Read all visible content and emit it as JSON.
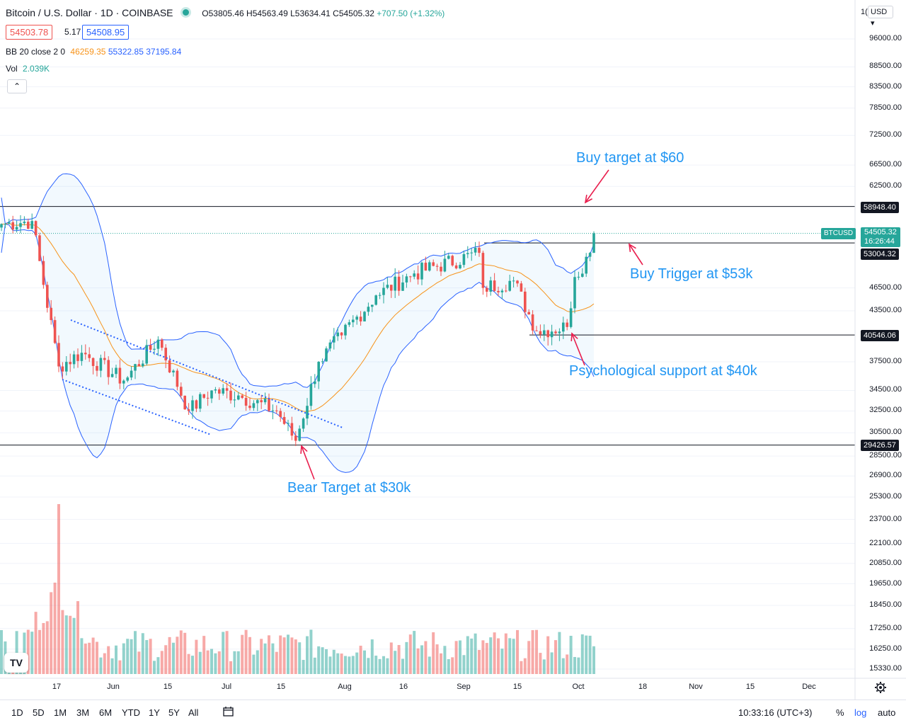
{
  "header": {
    "title": "Bitcoin / U.S. Dollar · 1D · COINBASE",
    "ohlc_open": "O53805.46",
    "ohlc_high": "H54563.49",
    "ohlc_low": "L53634.41",
    "ohlc_close": "C54505.32",
    "ohlc_change": "+707.50 (+1.32%)",
    "sell_price": "54503.78",
    "spread": "5.17",
    "buy_price": "54508.95"
  },
  "indicators": {
    "bb_name": "BB 20 close 2 0",
    "bb_basis": "46259.35",
    "bb_upper": "55322.85",
    "bb_lower": "37195.84",
    "vol_name": "Vol",
    "vol_value": "2.039K",
    "collapse_glyph": "⌃"
  },
  "price_axis": {
    "currency": "USD",
    "top_cut_label": "1(",
    "ticks": [
      "96000.00",
      "88500.00",
      "83500.00",
      "78500.00",
      "72500.00",
      "66500.00",
      "62500.00",
      "46500.00",
      "43500.00",
      "37500.00",
      "34500.00",
      "32500.00",
      "30500.00",
      "28500.00",
      "26900.00",
      "25300.00",
      "23700.00",
      "22100.00",
      "20850.00",
      "19650.00",
      "18450.00",
      "17250.00",
      "16250.00",
      "15330.00"
    ],
    "tags": {
      "buy_target_level": "58948.40",
      "symbol": "BTCUSD",
      "last_price": "54505.32",
      "countdown": "16:26:44",
      "buy_trigger_level": "53004.32",
      "support_level": "40546.06",
      "bear_level": "29426.57"
    }
  },
  "time_axis": {
    "labels": [
      "17",
      "Jun",
      "15",
      "Jul",
      "15",
      "Aug",
      "16",
      "Sep",
      "15",
      "Oct",
      "18",
      "Nov",
      "15",
      "Dec"
    ]
  },
  "annotations": {
    "buy_target": "Buy target at $60",
    "buy_trigger": "Buy Trigger at $53k",
    "psych_support": "Psychological support at $40k",
    "bear_target": "Bear Target at $30k"
  },
  "bottom_bar": {
    "ranges": [
      "1D",
      "5D",
      "1M",
      "3M",
      "6M",
      "YTD",
      "1Y",
      "5Y",
      "All"
    ],
    "clock": "10:33:16 (UTC+3)",
    "percent": "%",
    "log": "log",
    "auto": "auto"
  },
  "colors": {
    "up": "#26a69a",
    "down": "#ef5350",
    "bb_band": "#2962ff",
    "bb_basis": "#f7931a",
    "annotation": "#2196f3",
    "arrow": "#e91e4d"
  },
  "chart_data": {
    "type": "candlestick",
    "symbol": "BTCUSD",
    "exchange": "COINBASE",
    "interval": "1D",
    "scale": "log",
    "period_from": "2021-05-04",
    "period_to": "2021-10-06",
    "horizontal_levels": [
      58948.4,
      53004.32,
      40546.06,
      29426.57
    ],
    "last_price": 54505.32,
    "close_waypoints": [
      {
        "date": "2021-05-04",
        "value": 56000
      },
      {
        "date": "2021-05-12",
        "value": 56500
      },
      {
        "date": "2021-05-19",
        "value": 37000
      },
      {
        "date": "2021-05-25",
        "value": 38500
      },
      {
        "date": "2021-06-05",
        "value": 35500
      },
      {
        "date": "2021-06-14",
        "value": 40000
      },
      {
        "date": "2021-06-22",
        "value": 32500
      },
      {
        "date": "2021-06-28",
        "value": 34500
      },
      {
        "date": "2021-07-05",
        "value": 34000
      },
      {
        "date": "2021-07-15",
        "value": 32500
      },
      {
        "date": "2021-07-20",
        "value": 29800
      },
      {
        "date": "2021-07-26",
        "value": 37500
      },
      {
        "date": "2021-08-01",
        "value": 40500
      },
      {
        "date": "2021-08-10",
        "value": 45500
      },
      {
        "date": "2021-08-20",
        "value": 48500
      },
      {
        "date": "2021-09-06",
        "value": 51500
      },
      {
        "date": "2021-09-07",
        "value": 46500
      },
      {
        "date": "2021-09-15",
        "value": 47500
      },
      {
        "date": "2021-09-21",
        "value": 41000
      },
      {
        "date": "2021-09-29",
        "value": 41500
      },
      {
        "date": "2021-10-01",
        "value": 48000
      },
      {
        "date": "2021-10-05",
        "value": 51500
      },
      {
        "date": "2021-10-06",
        "value": 54505
      }
    ],
    "volume_max_date": "2021-05-19"
  }
}
